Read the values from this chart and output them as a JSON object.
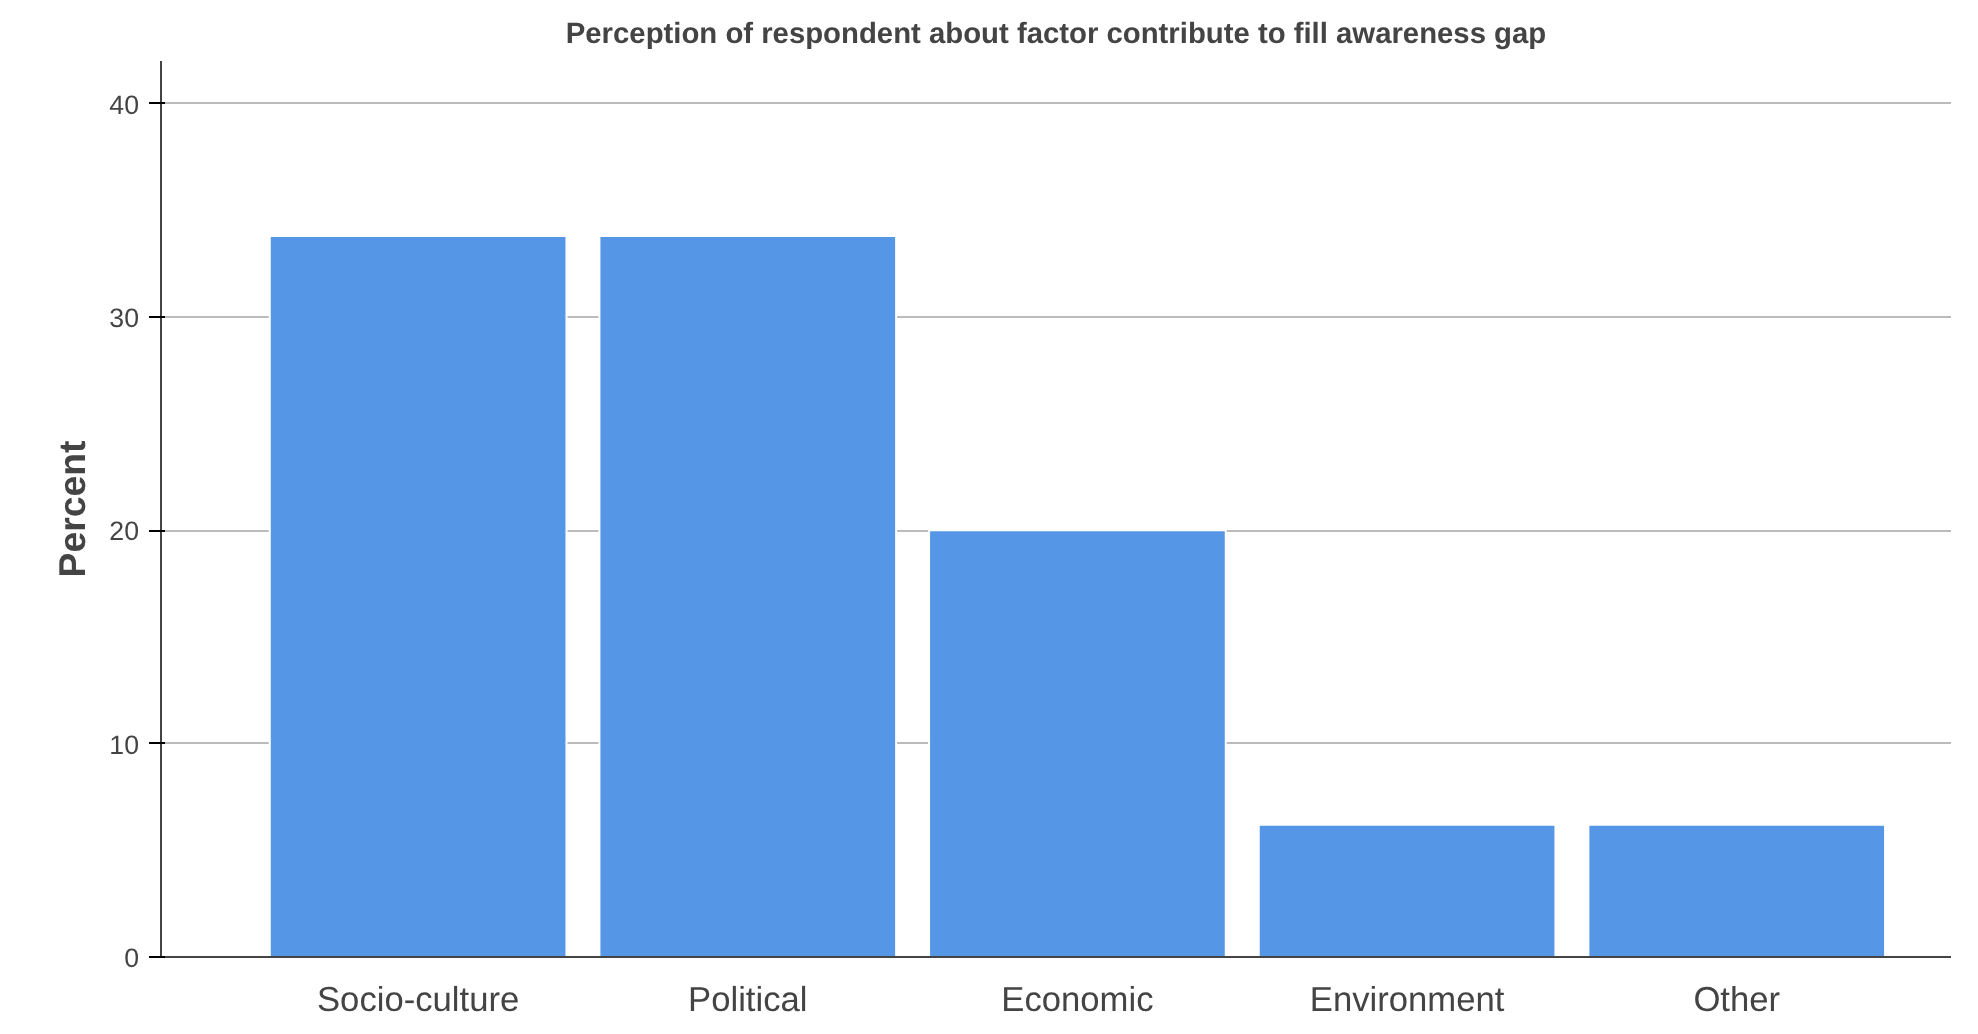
{
  "chart_data": {
    "type": "bar",
    "title": "Perception of respondent about factor contribute to fill awareness gap",
    "ylabel": "Percent",
    "categories": [
      "Socio-culture",
      "Political",
      "Economic",
      "Environment",
      "Other"
    ],
    "values": [
      33.8,
      33.8,
      20.0,
      6.2,
      6.2
    ],
    "color": "#5596e6",
    "ylim": [
      0,
      42
    ],
    "yticks": [
      0,
      10,
      20,
      30,
      40
    ],
    "grid": "y"
  }
}
